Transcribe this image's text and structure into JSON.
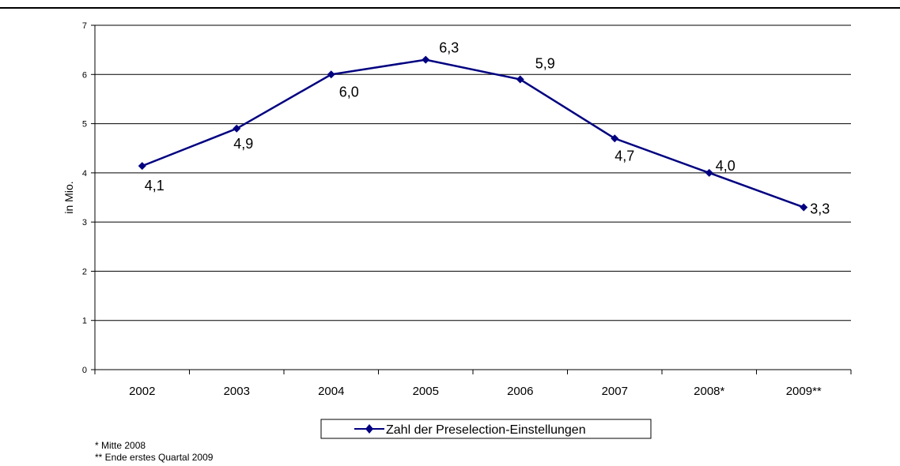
{
  "chart_data": {
    "type": "line",
    "title": "",
    "xlabel": "",
    "ylabel": "in Mio.",
    "ylim": [
      0,
      7
    ],
    "yticks": [
      0,
      1,
      2,
      3,
      4,
      5,
      6,
      7
    ],
    "grid": true,
    "categories": [
      "2002",
      "2003",
      "2004",
      "2005",
      "2006",
      "2007",
      "2008*",
      "2009**"
    ],
    "series": [
      {
        "name": "Zahl der Preselection-Einstellungen",
        "values": [
          4.14,
          4.9,
          6.0,
          6.3,
          5.9,
          4.7,
          4.0,
          3.3
        ],
        "labels": [
          "4,1",
          "4,9",
          "6,0",
          "6,3",
          "5,9",
          "4,7",
          "4,0",
          "3,3"
        ],
        "color": "#000080"
      }
    ],
    "legend_position": "bottom"
  },
  "footnotes": [
    "* Mitte 2008",
    "** Ende erstes Quartal 2009"
  ]
}
